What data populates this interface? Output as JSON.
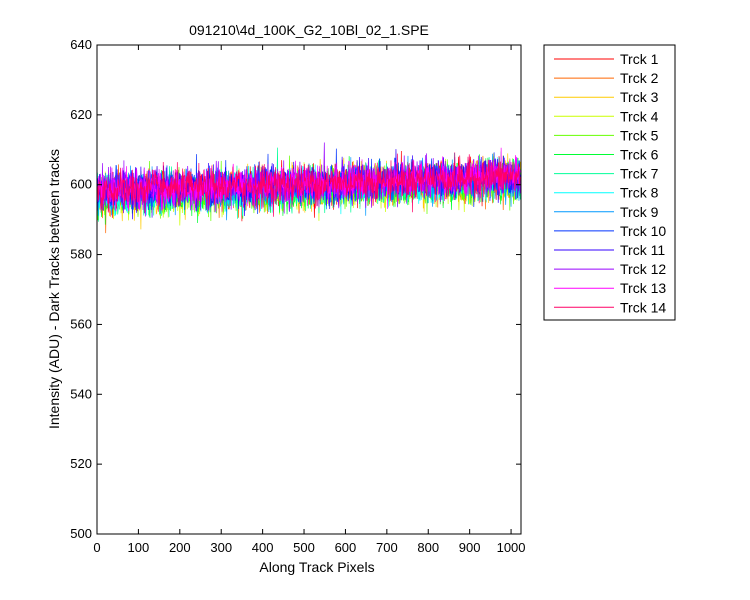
{
  "chart_data": {
    "type": "line",
    "title": "091210\\4d_100K_G2_10Bl_02_1.SPE",
    "xlabel": "Along Track Pixels",
    "ylabel": "Intensity (ADU) - Dark Tracks between tracks",
    "xlim": [
      0,
      1024
    ],
    "ylim": [
      500,
      640
    ],
    "x_ticks": [
      0,
      100,
      200,
      300,
      400,
      500,
      600,
      700,
      800,
      900,
      1000
    ],
    "y_ticks": [
      500,
      520,
      540,
      560,
      580,
      600,
      620,
      640
    ],
    "grid": false,
    "legend_position": "outside-top-right",
    "n_points_per_series": 1024,
    "signal_note_trend": {
      "start": 597,
      "end": 602
    },
    "noise_amplitude": 6,
    "series": [
      {
        "name": "Trck 1",
        "color": "#ff0000",
        "mean_start": 597.5,
        "mean_end": 602
      },
      {
        "name": "Trck 2",
        "color": "#ff6600",
        "mean_start": 597,
        "mean_end": 601.5
      },
      {
        "name": "Trck 3",
        "color": "#ffcc00",
        "mean_start": 597,
        "mean_end": 601.5
      },
      {
        "name": "Trck 4",
        "color": "#ccff00",
        "mean_start": 596.5,
        "mean_end": 601
      },
      {
        "name": "Trck 5",
        "color": "#66ff00",
        "mean_start": 596.5,
        "mean_end": 601
      },
      {
        "name": "Trck 6",
        "color": "#00ff33",
        "mean_start": 596.5,
        "mean_end": 601
      },
      {
        "name": "Trck 7",
        "color": "#00ff99",
        "mean_start": 597,
        "mean_end": 601.5
      },
      {
        "name": "Trck 8",
        "color": "#00ffff",
        "mean_start": 597,
        "mean_end": 601.5
      },
      {
        "name": "Trck 9",
        "color": "#0099ff",
        "mean_start": 597.5,
        "mean_end": 602
      },
      {
        "name": "Trck 10",
        "color": "#0033ff",
        "mean_start": 598,
        "mean_end": 602.5
      },
      {
        "name": "Trck 11",
        "color": "#3300ff",
        "mean_start": 598,
        "mean_end": 602.5
      },
      {
        "name": "Trck 12",
        "color": "#9900ff",
        "mean_start": 598,
        "mean_end": 602.5
      },
      {
        "name": "Trck 13",
        "color": "#ff00ff",
        "mean_start": 598,
        "mean_end": 602.5
      },
      {
        "name": "Trck 14",
        "color": "#ff0066",
        "mean_start": 598,
        "mean_end": 602.5
      }
    ]
  }
}
